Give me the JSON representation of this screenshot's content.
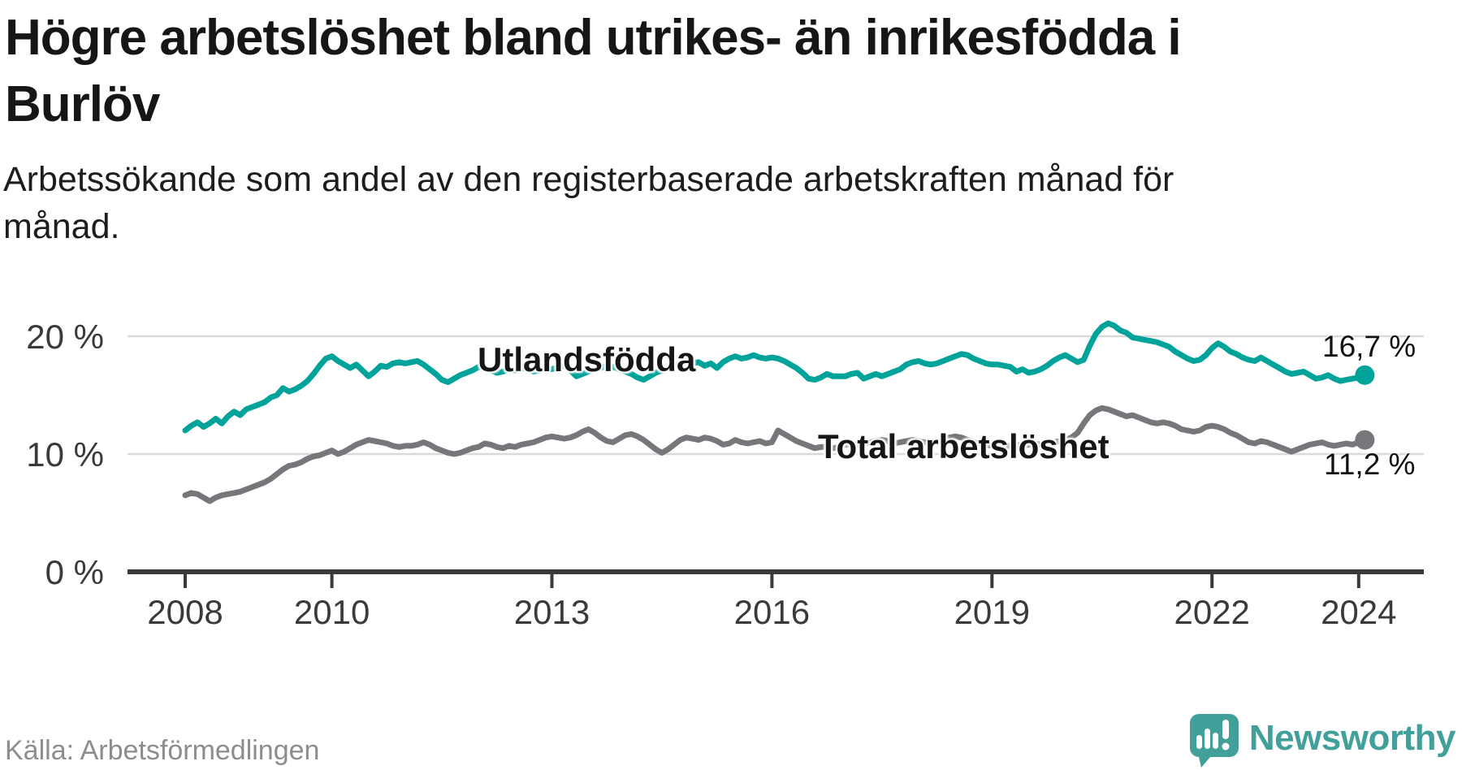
{
  "header": {
    "title_lines": [
      "Högre arbetslöshet bland utrikes- än inrikesfödda i",
      "Burlöv"
    ],
    "subtitle_lines": [
      "Arbetssökande som andel av den registerbaserade arbetskraften månad för",
      "månad."
    ]
  },
  "source": {
    "label": "Källa: Arbetsförmedlingen"
  },
  "branding": {
    "name": "Newsworthy",
    "icon": "newsworthy-speech-bubble-bar-chart-icon",
    "color": "#41a09a"
  },
  "chart_data": {
    "type": "line",
    "unit": "%",
    "grid": "horizontal-only",
    "x_axis": {
      "ticks": [
        2008,
        2010,
        2013,
        2016,
        2019,
        2022,
        2024
      ],
      "range_years": [
        2007.2,
        2025.0
      ]
    },
    "y_axis": {
      "ticks": [
        {
          "value": 20,
          "label": "20 %"
        },
        {
          "value": 10,
          "label": "10 %"
        },
        {
          "value": 0,
          "label": "0 %"
        }
      ],
      "range": [
        0,
        24
      ]
    },
    "colors": {
      "grid": "#d9d9d9",
      "axis": "#3a3a3a",
      "tick_text": "#3a3a3a"
    },
    "series": [
      {
        "name": "Utlandsfödda",
        "color": "#00a39a",
        "end_label": "16,7 %",
        "end_value": 16.7,
        "start_year": 2008,
        "step_months": 1,
        "values": [
          [
            12.0,
            12.4,
            12.7,
            12.3,
            12.6,
            13.0,
            12.6,
            13.2,
            13.6,
            13.3,
            13.8,
            14.0
          ],
          [
            14.2,
            14.4,
            14.8,
            15.0,
            15.6,
            15.3,
            15.5,
            15.8,
            16.2,
            16.8,
            17.5,
            18.1
          ],
          [
            18.3,
            17.9,
            17.6,
            17.3,
            17.6,
            17.1,
            16.6,
            17.0,
            17.5,
            17.4,
            17.7,
            17.8
          ],
          [
            17.7,
            17.8,
            17.9,
            17.6,
            17.2,
            16.8,
            16.3,
            16.1,
            16.4,
            16.7,
            16.9,
            17.1
          ],
          [
            17.4,
            17.3,
            17.1,
            16.9,
            17.0,
            17.2,
            17.1,
            17.3,
            17.2,
            17.0,
            17.1,
            17.3
          ],
          [
            17.2,
            17.4,
            17.5,
            17.1,
            16.6,
            16.8,
            17.0,
            17.2,
            17.3,
            17.5,
            17.4,
            17.2
          ],
          [
            17.0,
            16.8,
            16.5,
            16.3,
            16.6,
            16.9,
            17.1,
            17.3,
            17.5,
            17.7,
            17.8,
            17.7
          ],
          [
            17.8,
            17.5,
            17.7,
            17.3,
            17.8,
            18.1,
            18.3,
            18.1,
            18.2,
            18.4,
            18.2,
            18.1
          ],
          [
            18.2,
            18.1,
            17.9,
            17.6,
            17.3,
            16.9,
            16.4,
            16.3,
            16.5,
            16.8,
            16.6,
            16.6
          ],
          [
            16.6,
            16.8,
            16.9,
            16.4,
            16.6,
            16.8,
            16.6,
            16.8,
            17.0,
            17.2,
            17.6,
            17.8
          ],
          [
            17.9,
            17.7,
            17.6,
            17.7,
            17.9,
            18.1,
            18.3,
            18.5,
            18.4,
            18.1,
            17.9,
            17.7
          ],
          [
            17.6,
            17.6,
            17.5,
            17.4,
            17.0,
            17.2,
            16.9,
            17.0,
            17.2,
            17.5,
            17.9,
            18.2
          ],
          [
            18.4,
            18.1,
            17.8,
            18.0,
            19.2,
            20.2,
            20.8,
            21.1,
            20.9,
            20.5,
            20.3,
            19.9
          ],
          [
            19.8,
            19.7,
            19.6,
            19.5,
            19.3,
            19.1,
            18.7,
            18.4,
            18.1,
            17.9,
            18.0,
            18.4
          ],
          [
            19.0,
            19.4,
            19.1,
            18.7,
            18.5,
            18.2,
            18.0,
            17.9,
            18.2,
            17.9,
            17.6,
            17.3
          ],
          [
            17.0,
            16.8,
            16.9,
            17.0,
            16.7,
            16.4,
            16.5,
            16.7,
            16.4,
            16.2,
            16.3,
            16.4
          ],
          [
            16.5,
            16.7
          ]
        ]
      },
      {
        "name": "Total arbetslöshet",
        "color": "#76767b",
        "end_label": "11,2 %",
        "end_value": 11.2,
        "start_year": 2008,
        "step_months": 1,
        "values": [
          [
            6.5,
            6.7,
            6.6,
            6.3,
            6.0,
            6.3,
            6.5,
            6.6,
            6.7,
            6.8,
            7.0,
            7.2
          ],
          [
            7.4,
            7.6,
            7.9,
            8.3,
            8.7,
            9.0,
            9.1,
            9.3,
            9.6,
            9.8,
            9.9,
            10.1
          ],
          [
            10.3,
            10.0,
            10.2,
            10.5,
            10.8,
            11.0,
            11.2,
            11.1,
            11.0,
            10.9,
            10.7,
            10.6
          ],
          [
            10.7,
            10.7,
            10.8,
            11.0,
            10.8,
            10.5,
            10.3,
            10.1,
            10.0,
            10.1,
            10.3,
            10.5
          ],
          [
            10.6,
            10.9,
            10.8,
            10.6,
            10.5,
            10.7,
            10.6,
            10.8,
            10.9,
            11.0,
            11.2,
            11.4
          ],
          [
            11.5,
            11.4,
            11.3,
            11.4,
            11.6,
            11.9,
            12.1,
            11.8,
            11.4,
            11.1,
            11.0,
            11.3
          ],
          [
            11.6,
            11.7,
            11.5,
            11.2,
            10.8,
            10.4,
            10.1,
            10.4,
            10.8,
            11.2,
            11.4,
            11.3
          ],
          [
            11.2,
            11.4,
            11.3,
            11.1,
            10.8,
            10.9,
            11.2,
            11.0,
            10.9,
            11.0,
            11.1,
            10.9
          ],
          [
            11.0,
            12.0,
            11.7,
            11.4,
            11.1,
            10.9,
            10.7,
            10.5,
            10.6,
            10.6,
            10.5,
            10.6
          ],
          [
            10.8,
            10.9,
            10.8,
            10.9,
            11.0,
            11.1,
            11.2,
            11.1,
            10.9,
            11.0,
            11.1,
            11.2
          ],
          [
            11.1,
            11.0,
            10.9,
            11.0,
            11.2,
            11.4,
            11.5,
            11.4,
            11.2,
            11.0,
            10.9,
            10.8
          ],
          [
            10.7,
            10.7,
            10.6,
            10.7,
            10.8,
            10.7,
            10.8,
            10.9,
            10.8,
            10.9,
            11.0,
            11.1
          ],
          [
            11.2,
            11.4,
            11.8,
            12.6,
            13.3,
            13.7,
            13.9,
            13.8,
            13.6,
            13.4,
            13.2,
            13.3
          ],
          [
            13.1,
            12.9,
            12.7,
            12.6,
            12.7,
            12.6,
            12.4,
            12.1,
            12.0,
            11.9,
            12.0,
            12.3
          ],
          [
            12.4,
            12.3,
            12.1,
            11.8,
            11.6,
            11.3,
            11.0,
            10.9,
            11.1,
            11.0,
            10.8,
            10.6
          ],
          [
            10.4,
            10.2,
            10.4,
            10.6,
            10.8,
            10.9,
            11.0,
            10.8,
            10.7,
            10.8,
            10.9,
            10.8
          ],
          [
            11.0,
            11.2
          ]
        ]
      }
    ]
  }
}
